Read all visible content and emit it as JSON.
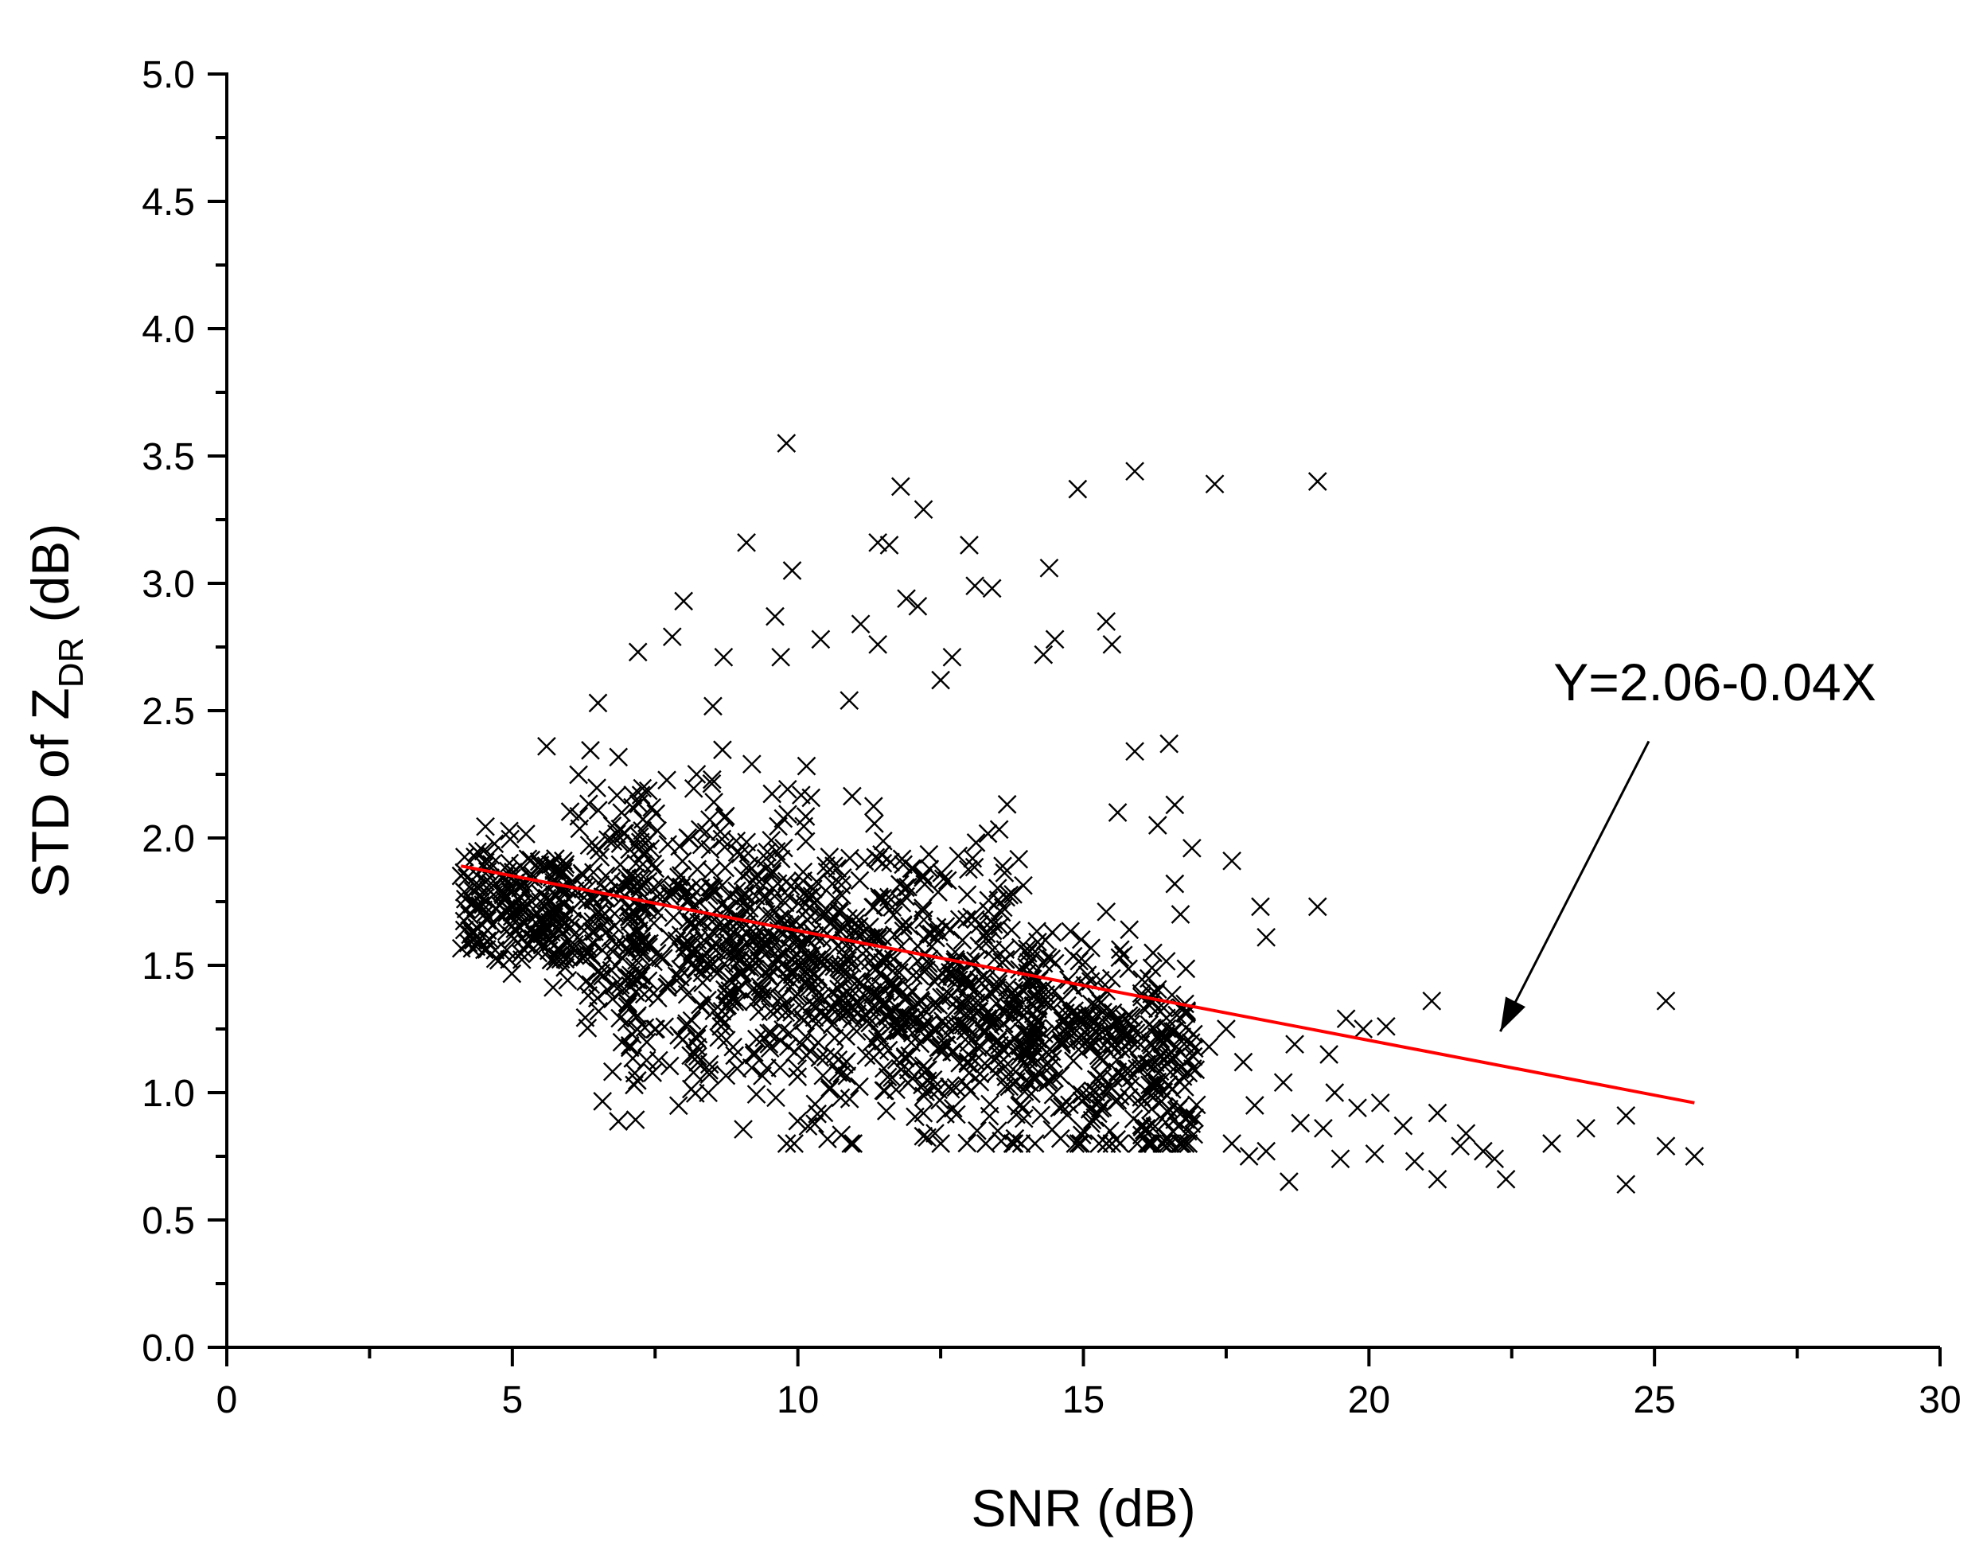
{
  "chart_data": {
    "type": "scatter",
    "title": "",
    "xlabel": "SNR (dB)",
    "ylabel": {
      "prefix": "STD of Z",
      "subscript": "DR",
      "suffix": " (dB)"
    },
    "xlim": [
      0,
      30
    ],
    "ylim": [
      0,
      5
    ],
    "xticks": [
      "0",
      "5",
      "10",
      "15",
      "20",
      "25",
      "30"
    ],
    "yticks": [
      "0.0",
      "0.5",
      "1.0",
      "1.5",
      "2.0",
      "2.5",
      "3.0",
      "3.5",
      "4.0",
      "4.5",
      "5.0"
    ],
    "marker": "x",
    "marker_color": "#000000",
    "grid": false,
    "legend": "none",
    "series": [
      {
        "points": [
          [
            9.8,
            3.55
          ],
          [
            15.9,
            3.44
          ],
          [
            19.1,
            3.4
          ],
          [
            17.3,
            3.39
          ],
          [
            11.8,
            3.38
          ],
          [
            14.9,
            3.37
          ],
          [
            12.2,
            3.29
          ],
          [
            9.1,
            3.16
          ],
          [
            11.4,
            3.16
          ],
          [
            11.6,
            3.15
          ],
          [
            13.0,
            3.15
          ],
          [
            14.4,
            3.06
          ],
          [
            9.9,
            3.05
          ],
          [
            13.4,
            2.98
          ],
          [
            13.1,
            2.99
          ],
          [
            8.0,
            2.93
          ],
          [
            11.9,
            2.94
          ],
          [
            12.1,
            2.91
          ],
          [
            9.6,
            2.87
          ],
          [
            11.1,
            2.84
          ],
          [
            15.4,
            2.85
          ],
          [
            7.8,
            2.79
          ],
          [
            14.5,
            2.78
          ],
          [
            15.5,
            2.76
          ],
          [
            10.4,
            2.78
          ],
          [
            9.7,
            2.71
          ],
          [
            8.7,
            2.71
          ],
          [
            12.7,
            2.71
          ],
          [
            7.2,
            2.73
          ],
          [
            12.5,
            2.62
          ],
          [
            11.4,
            2.76
          ],
          [
            14.3,
            2.72
          ],
          [
            6.5,
            2.53
          ],
          [
            10.9,
            2.54
          ],
          [
            16.5,
            2.37
          ],
          [
            15.9,
            2.34
          ],
          [
            5.6,
            2.36
          ],
          [
            16.6,
            2.13
          ],
          [
            15.6,
            2.1
          ],
          [
            16.3,
            2.05
          ],
          [
            16.9,
            1.96
          ],
          [
            17.6,
            1.91
          ],
          [
            16.6,
            1.82
          ],
          [
            18.1,
            1.73
          ],
          [
            19.1,
            1.73
          ],
          [
            16.7,
            1.7
          ],
          [
            15.4,
            1.71
          ],
          [
            18.2,
            1.61
          ],
          [
            15.7,
            1.54
          ],
          [
            16.2,
            1.49
          ],
          [
            25.2,
            1.36
          ],
          [
            21.1,
            1.36
          ],
          [
            16.2,
            1.36
          ],
          [
            19.9,
            1.25
          ],
          [
            20.3,
            1.26
          ],
          [
            19.6,
            1.29
          ],
          [
            17.5,
            1.25
          ],
          [
            18.7,
            1.19
          ],
          [
            19.3,
            1.15
          ],
          [
            17.8,
            1.12
          ],
          [
            16.7,
            1.1
          ],
          [
            17.2,
            1.18
          ],
          [
            18.5,
            1.04
          ],
          [
            19.4,
            1.0
          ],
          [
            20.2,
            0.96
          ],
          [
            18.0,
            0.95
          ],
          [
            19.8,
            0.94
          ],
          [
            21.2,
            0.92
          ],
          [
            20.6,
            0.87
          ],
          [
            19.2,
            0.86
          ],
          [
            21.7,
            0.84
          ],
          [
            18.8,
            0.88
          ],
          [
            17.6,
            0.8
          ],
          [
            18.2,
            0.77
          ],
          [
            17.9,
            0.75
          ],
          [
            19.5,
            0.74
          ],
          [
            20.1,
            0.76
          ],
          [
            20.8,
            0.73
          ],
          [
            21.6,
            0.79
          ],
          [
            22.0,
            0.77
          ],
          [
            22.2,
            0.74
          ],
          [
            23.2,
            0.8
          ],
          [
            23.8,
            0.86
          ],
          [
            24.5,
            0.91
          ],
          [
            25.2,
            0.79
          ],
          [
            25.7,
            0.75
          ],
          [
            22.4,
            0.66
          ],
          [
            21.2,
            0.66
          ],
          [
            18.6,
            0.65
          ],
          [
            24.5,
            0.64
          ],
          [
            16.1,
            0.86
          ],
          [
            15.0,
            0.85
          ],
          [
            15.4,
            0.8
          ],
          [
            14.6,
            0.82
          ],
          [
            13.8,
            0.82
          ],
          [
            13.5,
            0.85
          ]
        ]
      }
    ],
    "cluster": {
      "note_free": true,
      "seed": 12345,
      "center_x": [
        4.5,
        14.0
      ],
      "weights_spread": 0
    },
    "fit_line": {
      "x": [
        4.1,
        25.7
      ],
      "y": [
        1.89,
        0.96
      ],
      "color": "#ff0000"
    },
    "annotation": {
      "text": "Y=2.06-0.04X",
      "arrow_from": [
        24.9,
        2.38
      ],
      "arrow_to": [
        22.3,
        1.24
      ]
    }
  }
}
